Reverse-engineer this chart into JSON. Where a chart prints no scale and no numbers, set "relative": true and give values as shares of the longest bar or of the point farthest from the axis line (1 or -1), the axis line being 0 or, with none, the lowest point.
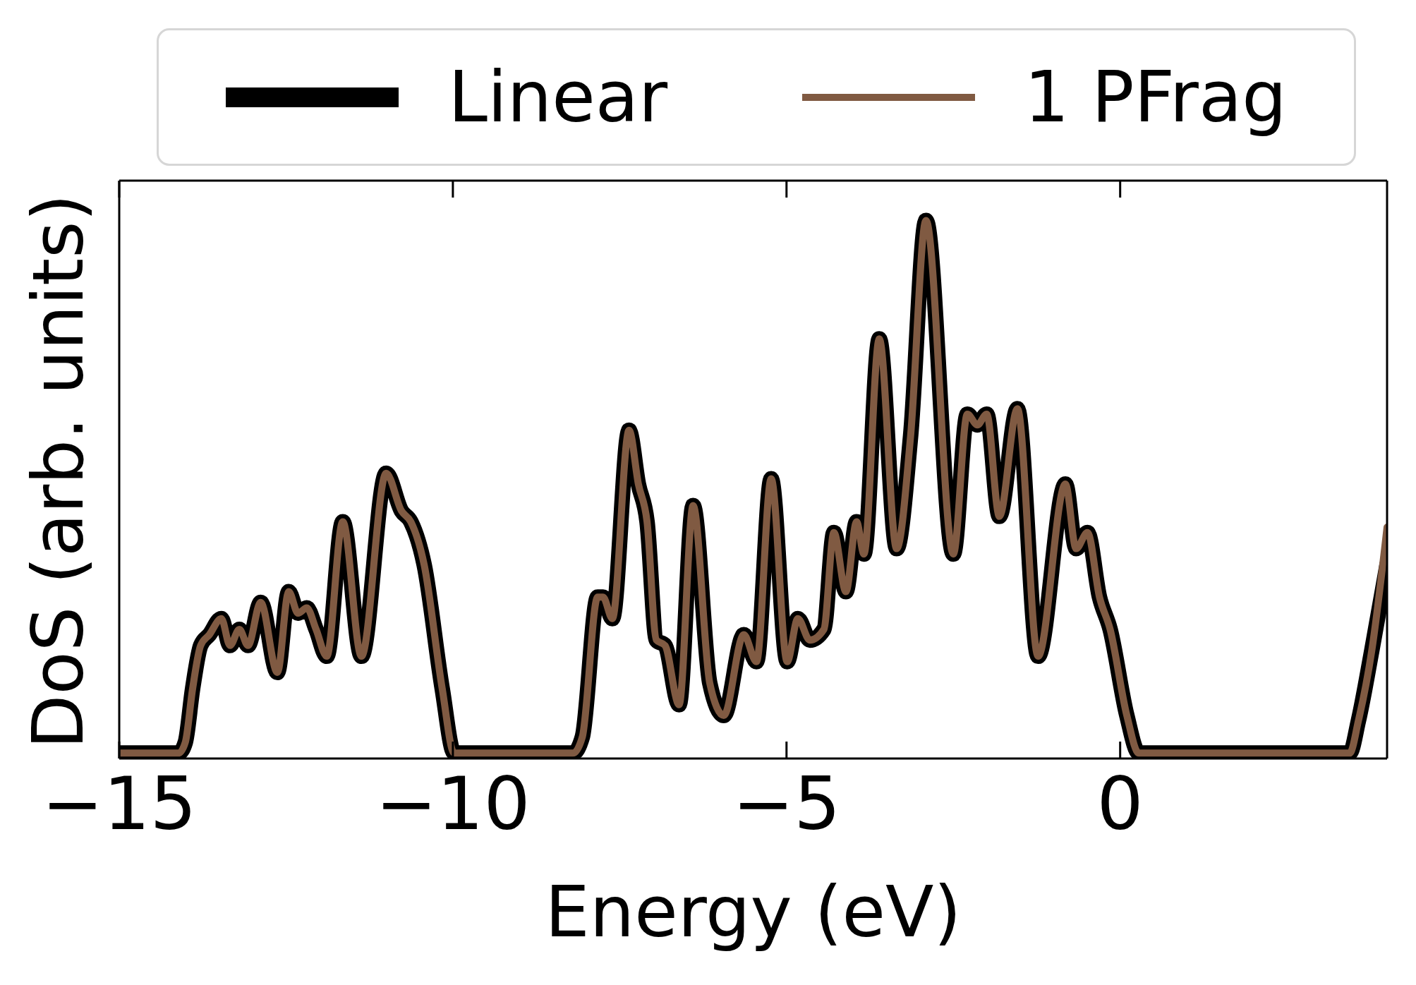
{
  "chart_data": {
    "type": "line",
    "xlabel": "Energy (eV)",
    "ylabel": "DoS (arb. units)",
    "relative": true,
    "legend": "top",
    "line_style": "solid",
    "xlim": [
      -15,
      4
    ],
    "xticks": [
      {
        "value": -15,
        "label": "−15"
      },
      {
        "value": -10,
        "label": "−10"
      },
      {
        "value": -5,
        "label": "−5"
      },
      0
    ],
    "x": [
      -15,
      -14.11,
      -14.01,
      -13.9,
      -13.78,
      -13.65,
      -13.47,
      -13.34,
      -13.2,
      -13.07,
      -12.88,
      -12.63,
      -12.46,
      -12.32,
      -12.19,
      -12.05,
      -11.89,
      -11.65,
      -11.37,
      -11.0,
      -10.77,
      -10.63,
      -10.43,
      -10.16,
      -9.98,
      -8.2,
      -8.06,
      -7.83,
      -7.75,
      -7.61,
      -7.36,
      -7.22,
      -7.09,
      -6.95,
      -6.82,
      -6.61,
      -6.4,
      -6.15,
      -5.94,
      -5.64,
      -5.45,
      -5.23,
      -4.99,
      -4.83,
      -4.65,
      -4.44,
      -4.29,
      -4.11,
      -3.95,
      -3.84,
      -3.61,
      -3.35,
      -3.14,
      -2.91,
      -2.5,
      -2.29,
      -2.14,
      -2.0,
      -1.81,
      -1.54,
      -1.23,
      -0.82,
      -0.66,
      -0.49,
      -0.31,
      -0.15,
      0.1,
      0.28,
      3.44,
      3.57,
      3.77,
      4.0
    ],
    "series": [
      {
        "name": "Linear",
        "color": "#000000",
        "values": [
          0.01,
          0.01,
          0.03,
          0.13,
          0.21,
          0.23,
          0.26,
          0.21,
          0.24,
          0.21,
          0.29,
          0.16,
          0.31,
          0.27,
          0.28,
          0.24,
          0.19,
          0.44,
          0.19,
          0.53,
          0.46,
          0.44,
          0.36,
          0.13,
          0.01,
          0.01,
          0.04,
          0.3,
          0.3,
          0.26,
          0.61,
          0.51,
          0.44,
          0.22,
          0.21,
          0.1,
          0.47,
          0.14,
          0.08,
          0.23,
          0.18,
          0.52,
          0.18,
          0.26,
          0.22,
          0.24,
          0.42,
          0.31,
          0.44,
          0.38,
          0.78,
          0.39,
          0.6,
          1,
          0.38,
          0.64,
          0.62,
          0.64,
          0.45,
          0.65,
          0.19,
          0.51,
          0.39,
          0.42,
          0.3,
          0.24,
          0.08,
          0.01,
          0.01,
          0.07,
          0.2,
          0.36
        ]
      },
      {
        "name": "1 PFrag",
        "color": "#805a42",
        "values": [
          0.01,
          0.01,
          0.03,
          0.13,
          0.21,
          0.23,
          0.26,
          0.21,
          0.24,
          0.21,
          0.29,
          0.16,
          0.31,
          0.27,
          0.28,
          0.24,
          0.19,
          0.44,
          0.19,
          0.53,
          0.46,
          0.44,
          0.36,
          0.13,
          0.01,
          0.01,
          0.04,
          0.3,
          0.3,
          0.26,
          0.61,
          0.51,
          0.44,
          0.22,
          0.21,
          0.1,
          0.47,
          0.14,
          0.08,
          0.23,
          0.18,
          0.52,
          0.18,
          0.26,
          0.22,
          0.24,
          0.42,
          0.31,
          0.44,
          0.38,
          0.78,
          0.39,
          0.6,
          1,
          0.38,
          0.64,
          0.62,
          0.64,
          0.45,
          0.65,
          0.19,
          0.51,
          0.39,
          0.42,
          0.3,
          0.24,
          0.08,
          0.01,
          0.01,
          0.07,
          0.2,
          0.43
        ]
      }
    ]
  }
}
